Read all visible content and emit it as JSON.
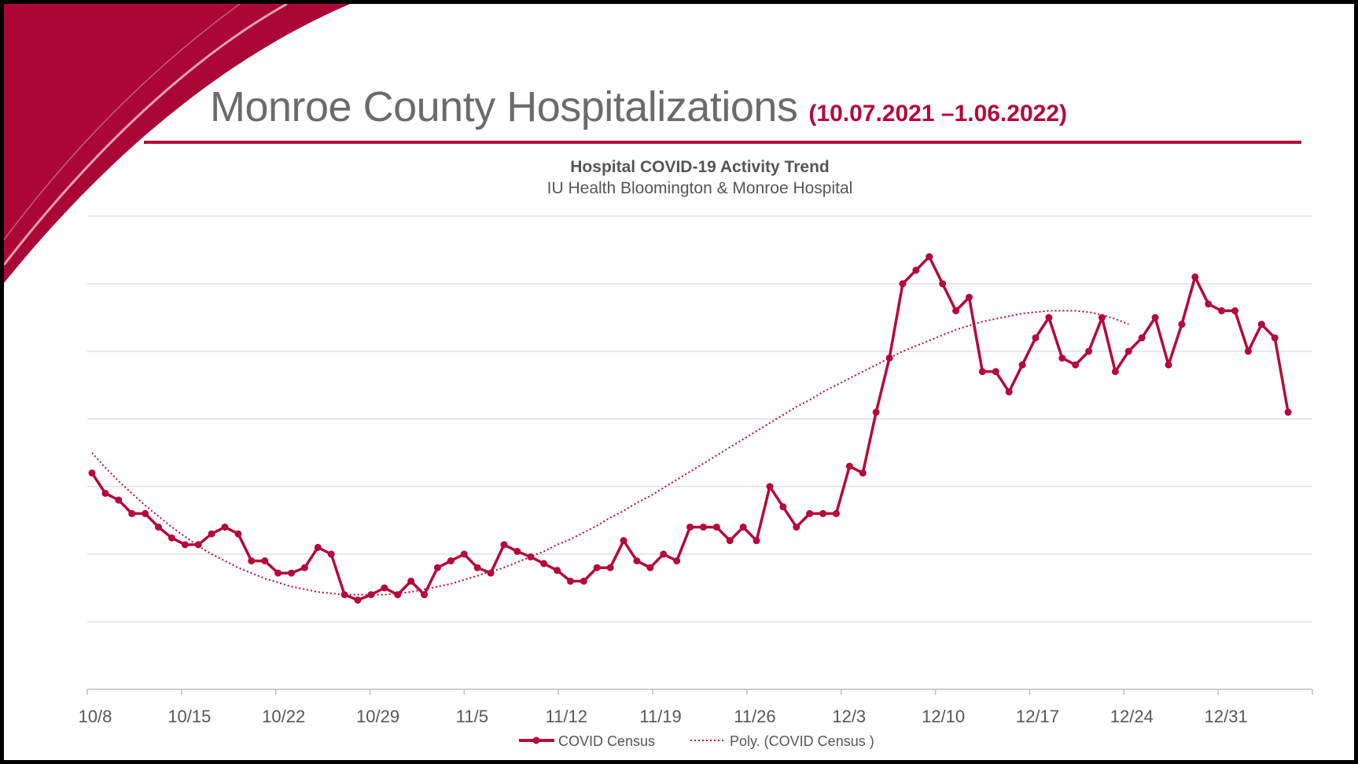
{
  "header": {
    "title": "Monroe County Hospitalizations",
    "date_range": "(10.07.2021 –1.06.2022)"
  },
  "colors": {
    "accent": "#b5093a",
    "grid": "#d9d9d9",
    "text": "#555555"
  },
  "chart_data": {
    "type": "line",
    "title": "Hospital COVID-19 Activity Trend",
    "subtitle": "IU Health Bloomington & Monroe Hospital",
    "x_tick_labels": [
      "10/8",
      "10/15",
      "10/22",
      "10/29",
      "11/5",
      "11/12",
      "11/19",
      "11/26",
      "12/3",
      "12/10",
      "12/17",
      "12/24",
      "12/31"
    ],
    "x_range": [
      0,
      91
    ],
    "y_range": [
      0,
      35
    ],
    "grid": true,
    "legend": "bottom",
    "series": [
      {
        "name": "COVID Census",
        "style": "solid-with-markers",
        "values": [
          16,
          14.5,
          14,
          13,
          13,
          12,
          11.2,
          10.7,
          10.7,
          11.5,
          12,
          11.5,
          9.5,
          9.5,
          8.6,
          8.6,
          9,
          10.5,
          10,
          7,
          6.6,
          7,
          7.5,
          7,
          8,
          7,
          9,
          9.5,
          10,
          9,
          8.6,
          10.7,
          10.2,
          9.8,
          9.3,
          8.8,
          8,
          8,
          9,
          9,
          11,
          9.5,
          9,
          10,
          9.5,
          12,
          12,
          12,
          11,
          12,
          11,
          15,
          13.5,
          12,
          13,
          13,
          13,
          16.5,
          16,
          20.5,
          24.5,
          30,
          31,
          32,
          30,
          28,
          29,
          23.5,
          23.5,
          22,
          24,
          26,
          27.5,
          24.5,
          24,
          25,
          27.5,
          23.5,
          25,
          26,
          27.5,
          24,
          27,
          30.5,
          28.5,
          28,
          28,
          25,
          27,
          26,
          20.5
        ]
      },
      {
        "name": "Poly. (COVID Census )",
        "style": "dotted-trend",
        "values": [
          17.5,
          16.4,
          15.4,
          14.5,
          13.6,
          12.8,
          12,
          11.3,
          10.6,
          10,
          9.5,
          9,
          8.6,
          8.2,
          7.9,
          7.6,
          7.4,
          7.2,
          7.1,
          7,
          7,
          7,
          7,
          7.1,
          7.2,
          7.4,
          7.6,
          7.8,
          8.1,
          8.4,
          8.7,
          9,
          9.4,
          9.8,
          10.2,
          10.7,
          11.1,
          11.6,
          12.1,
          12.7,
          13.2,
          13.8,
          14.3,
          14.9,
          15.5,
          16.1,
          16.7,
          17.3,
          17.9,
          18.5,
          19.1,
          19.7,
          20.3,
          20.9,
          21.4,
          22,
          22.5,
          23,
          23.5,
          24,
          24.5,
          25,
          25.4,
          25.8,
          26.2,
          26.6,
          26.9,
          27.2,
          27.4,
          27.6,
          27.8,
          27.9,
          28,
          28,
          28,
          27.9,
          27.7,
          27.4,
          27
        ]
      }
    ]
  }
}
